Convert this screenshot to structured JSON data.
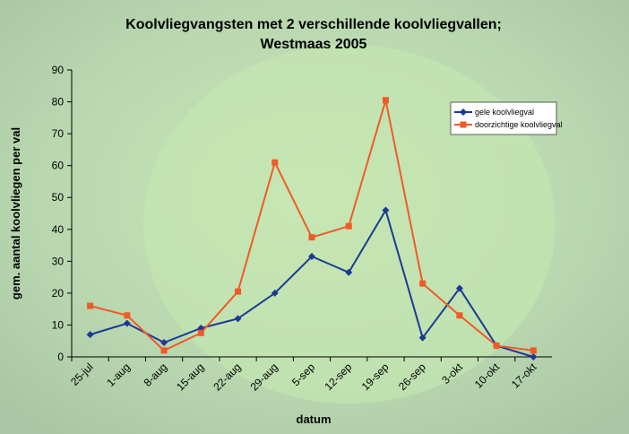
{
  "chart_data": {
    "type": "line",
    "title": [
      "Koolvliegvangsten met 2 verschillende koolvliegvallen;",
      "Westmaas 2005"
    ],
    "x_label": "datum",
    "y_label": "gem. aantal koolvliegen per val",
    "categories": [
      "25-jul",
      "1-aug",
      "8-aug",
      "15-aug",
      "22-aug",
      "29-aug",
      "5-sep",
      "12-sep",
      "19-sep",
      "26-sep",
      "3-okt",
      "10-okt",
      "17-okt"
    ],
    "series": [
      {
        "name": "gele koolvliegval",
        "color": "#1c3a94",
        "marker": "diamond",
        "values": [
          7,
          10.5,
          4.5,
          9,
          12,
          20,
          31.5,
          26.5,
          46,
          6,
          21.5,
          3.5,
          0
        ]
      },
      {
        "name": "doorzichtige koolvliegval",
        "color": "#f05a28",
        "marker": "square",
        "values": [
          16,
          13,
          2,
          7.5,
          20.5,
          61,
          37.5,
          41,
          80.5,
          23,
          13,
          3.5,
          2
        ]
      }
    ],
    "ylim": [
      0,
      90
    ],
    "yticks": [
      0,
      10,
      20,
      30,
      40,
      50,
      60,
      70,
      80,
      90
    ],
    "grid": false,
    "legend": "upper-right"
  }
}
